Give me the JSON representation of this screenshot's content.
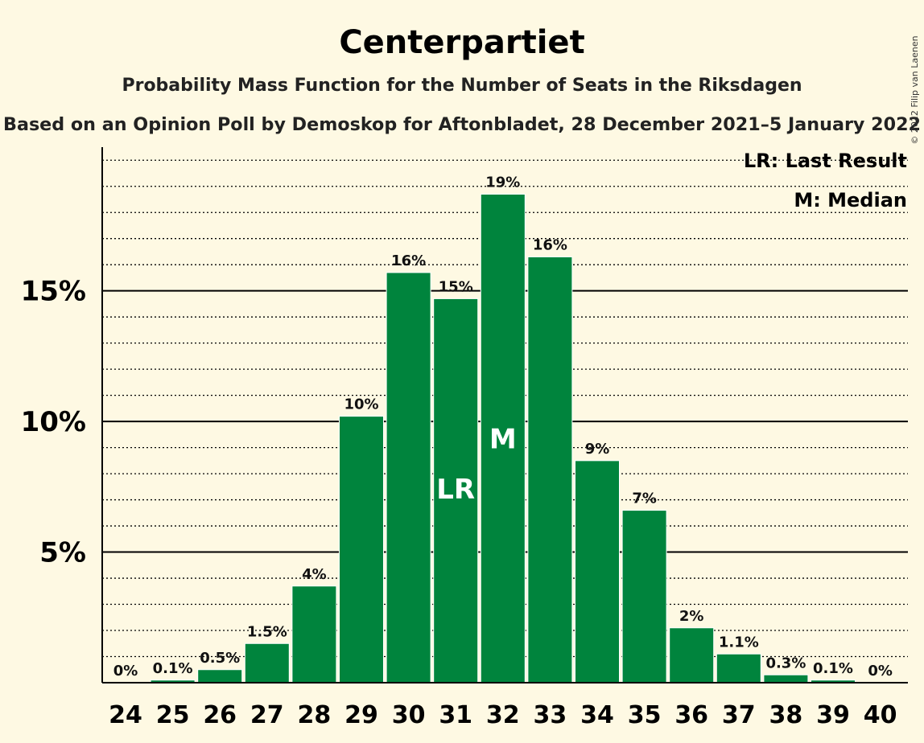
{
  "title": "Centerpartiet",
  "subtitle": "Probability Mass Function for the Number of Seats in the Riksdagen",
  "subtitle2": "Based on an Opinion Poll by Demoskop for Aftonbladet, 28 December 2021–5 January 2022",
  "copyright": "© 2022 Filip van Laenen",
  "legend": {
    "last_result": "LR: Last Result",
    "median": "M: Median"
  },
  "colors": {
    "bar": "#00843D",
    "background": "#FEF9E3"
  },
  "chart_data": {
    "type": "bar",
    "categories": [
      "24",
      "25",
      "26",
      "27",
      "28",
      "29",
      "30",
      "31",
      "32",
      "33",
      "34",
      "35",
      "36",
      "37",
      "38",
      "39",
      "40"
    ],
    "values": [
      0,
      0.1,
      0.5,
      1.5,
      3.7,
      10.2,
      15.7,
      14.7,
      18.7,
      16.3,
      8.5,
      6.6,
      2.1,
      1.1,
      0.3,
      0.1,
      0
    ],
    "labels": [
      "0%",
      "0.1%",
      "0.5%",
      "1.5%",
      "4%",
      "10%",
      "16%",
      "15%",
      "19%",
      "16%",
      "9%",
      "7%",
      "2%",
      "1.1%",
      "0.3%",
      "0.1%",
      "0%"
    ],
    "markers": {
      "31": "LR",
      "32": "M"
    },
    "yticks": [
      {
        "value": 5,
        "label": "5%"
      },
      {
        "value": 10,
        "label": "10%"
      },
      {
        "value": 15,
        "label": "15%"
      }
    ],
    "ylim": [
      0,
      20.5
    ],
    "grid": "solid major lines every 5%, dotted minor lines every 1%",
    "legend_position": "top-right"
  }
}
